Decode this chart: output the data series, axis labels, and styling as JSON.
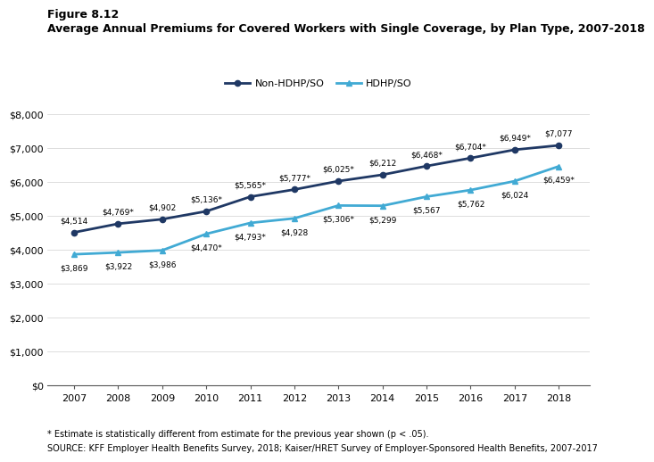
{
  "years": [
    2007,
    2008,
    2009,
    2010,
    2011,
    2012,
    2013,
    2014,
    2015,
    2016,
    2017,
    2018
  ],
  "non_hdhp": [
    4514,
    4769,
    4902,
    5136,
    5565,
    5777,
    6025,
    6212,
    6468,
    6704,
    6949,
    7077
  ],
  "hdhp": [
    3869,
    3922,
    3986,
    4470,
    4793,
    4928,
    5306,
    5299,
    5567,
    5762,
    6024,
    6459
  ],
  "non_hdhp_labels": [
    "$4,514",
    "$4,769*",
    "$4,902",
    "$5,136*",
    "$5,565*",
    "$5,777*",
    "$6,025*",
    "$6,212",
    "$6,468*",
    "$6,704*",
    "$6,949*",
    "$7,077"
  ],
  "hdhp_labels": [
    "$3,869",
    "$3,922",
    "$3,986",
    "$4,470*",
    "$4,793*",
    "$4,928",
    "$5,306*",
    "$5,299",
    "$5,567",
    "$5,762",
    "$6,024",
    "$6,459*"
  ],
  "non_hdhp_color": "#1f3864",
  "hdhp_color": "#41aad4",
  "title_line1": "Figure 8.12",
  "title_line2": "Average Annual Premiums for Covered Workers with Single Coverage, by Plan Type, 2007-2018",
  "legend_labels": [
    "Non-HDHP/SO",
    "HDHP/SO"
  ],
  "ylim": [
    0,
    8000
  ],
  "yticks": [
    0,
    1000,
    2000,
    3000,
    4000,
    5000,
    6000,
    7000,
    8000
  ],
  "footnote1": "* Estimate is statistically different from estimate for the previous year shown (p < .05).",
  "footnote2": "SOURCE: KFF Employer Health Benefits Survey, 2018; Kaiser/HRET Survey of Employer-Sponsored Health Benefits, 2007-2017",
  "bg_color": "#ffffff",
  "label_fontsize": 6.5,
  "tick_fontsize": 8,
  "legend_fontsize": 8
}
